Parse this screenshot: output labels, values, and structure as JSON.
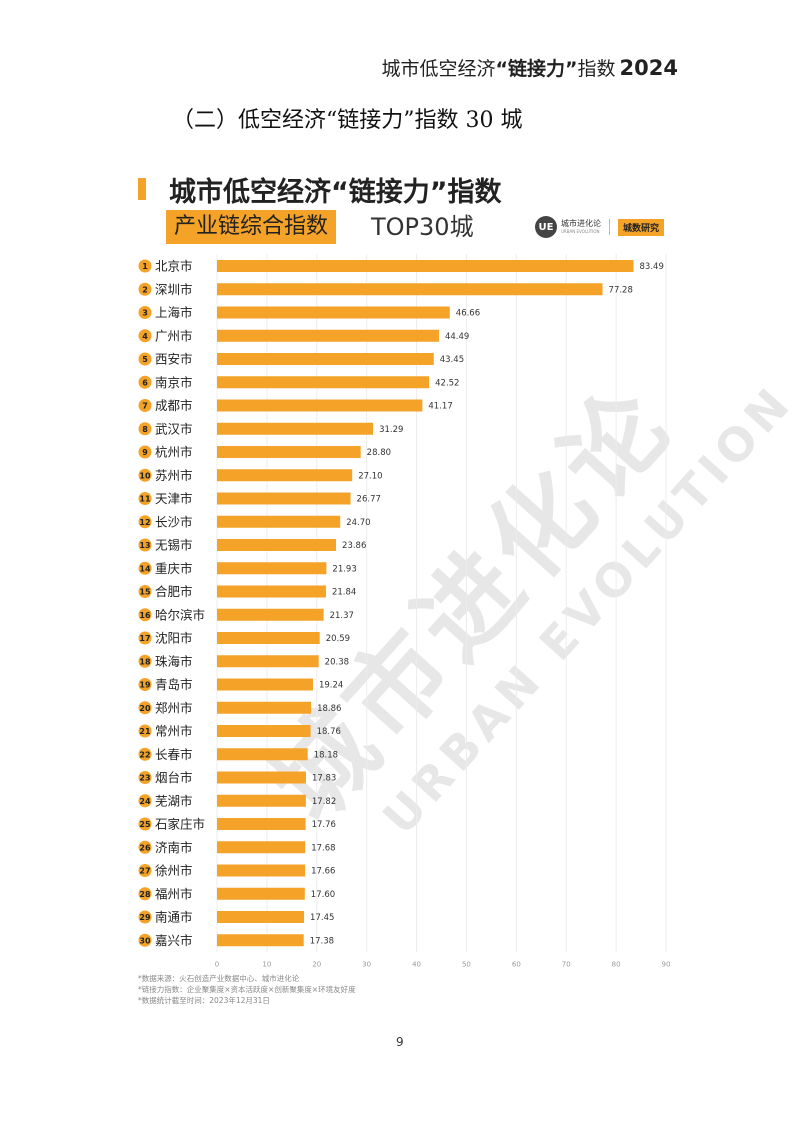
{
  "header": {
    "title": "城市低空经济",
    "title_quoted": "“链接力”",
    "title_suffix": "指数",
    "year": "2024"
  },
  "section_title": "（二）低空经济“链接力”指数 30 城",
  "chart_header": {
    "title": "城市低空经济“链接力”指数",
    "subtitle_boxed": "产业链综合指数",
    "subtitle_tail": "TOP30城",
    "logo_mark": "UE",
    "logo_cn": "城市进化论",
    "logo_en": "URBAN EVOLUTION",
    "brand_tag": "城数研究"
  },
  "watermark": {
    "cn": "城市进化论",
    "en": "URBAN EVOLUTION"
  },
  "colors": {
    "bar": "#f4a328",
    "badge": "#f4a328",
    "accent": "#f4a328",
    "axis_text": "#999999"
  },
  "chart_data": {
    "type": "bar",
    "orientation": "horizontal",
    "title": "城市低空经济“链接力”指数",
    "subtitle": "产业链综合指数 TOP30城",
    "ranks": [
      "1",
      "2",
      "3",
      "4",
      "5",
      "6",
      "7",
      "8",
      "9",
      "10",
      "11",
      "12",
      "13",
      "14",
      "15",
      "16",
      "17",
      "18",
      "19",
      "20",
      "21",
      "22",
      "23",
      "24",
      "25",
      "26",
      "27",
      "28",
      "29",
      "30"
    ],
    "categories": [
      "北京市",
      "深圳市",
      "上海市",
      "广州市",
      "西安市",
      "南京市",
      "成都市",
      "武汉市",
      "杭州市",
      "苏州市",
      "天津市",
      "长沙市",
      "无锡市",
      "重庆市",
      "合肥市",
      "哈尔滨市",
      "沈阳市",
      "珠海市",
      "青岛市",
      "郑州市",
      "常州市",
      "长春市",
      "烟台市",
      "芜湖市",
      "石家庄市",
      "济南市",
      "徐州市",
      "福州市",
      "南通市",
      "嘉兴市"
    ],
    "values": [
      83.49,
      77.28,
      46.66,
      44.49,
      43.45,
      42.52,
      41.17,
      31.29,
      28.8,
      27.1,
      26.77,
      24.7,
      23.86,
      21.93,
      21.84,
      21.37,
      20.59,
      20.38,
      19.24,
      18.86,
      18.76,
      18.18,
      17.83,
      17.82,
      17.76,
      17.68,
      17.66,
      17.6,
      17.45,
      17.38
    ],
    "value_labels": [
      "83.49",
      "77.28",
      "46.66",
      "44.49",
      "43.45",
      "42.52",
      "41.17",
      "31.29",
      "28.80",
      "27.10",
      "26.77",
      "24.70",
      "23.86",
      "21.93",
      "21.84",
      "21.37",
      "20.59",
      "20.38",
      "19.24",
      "18.86",
      "18.76",
      "18.18",
      "17.83",
      "17.82",
      "17.76",
      "17.68",
      "17.66",
      "17.60",
      "17.45",
      "17.38"
    ],
    "xlim": [
      0,
      90
    ],
    "xticks": [
      "0",
      "10",
      "20",
      "30",
      "40",
      "50",
      "60",
      "70",
      "80",
      "90"
    ],
    "grid": true
  },
  "notes": [
    "*数据来源：火石创造产业数据中心、城市进化论",
    "*链接力指数：企业聚集度×资本活跃度×创新聚集度×环境友好度",
    "*数据统计截至时间：2023年12月31日"
  ],
  "page_number": "9"
}
